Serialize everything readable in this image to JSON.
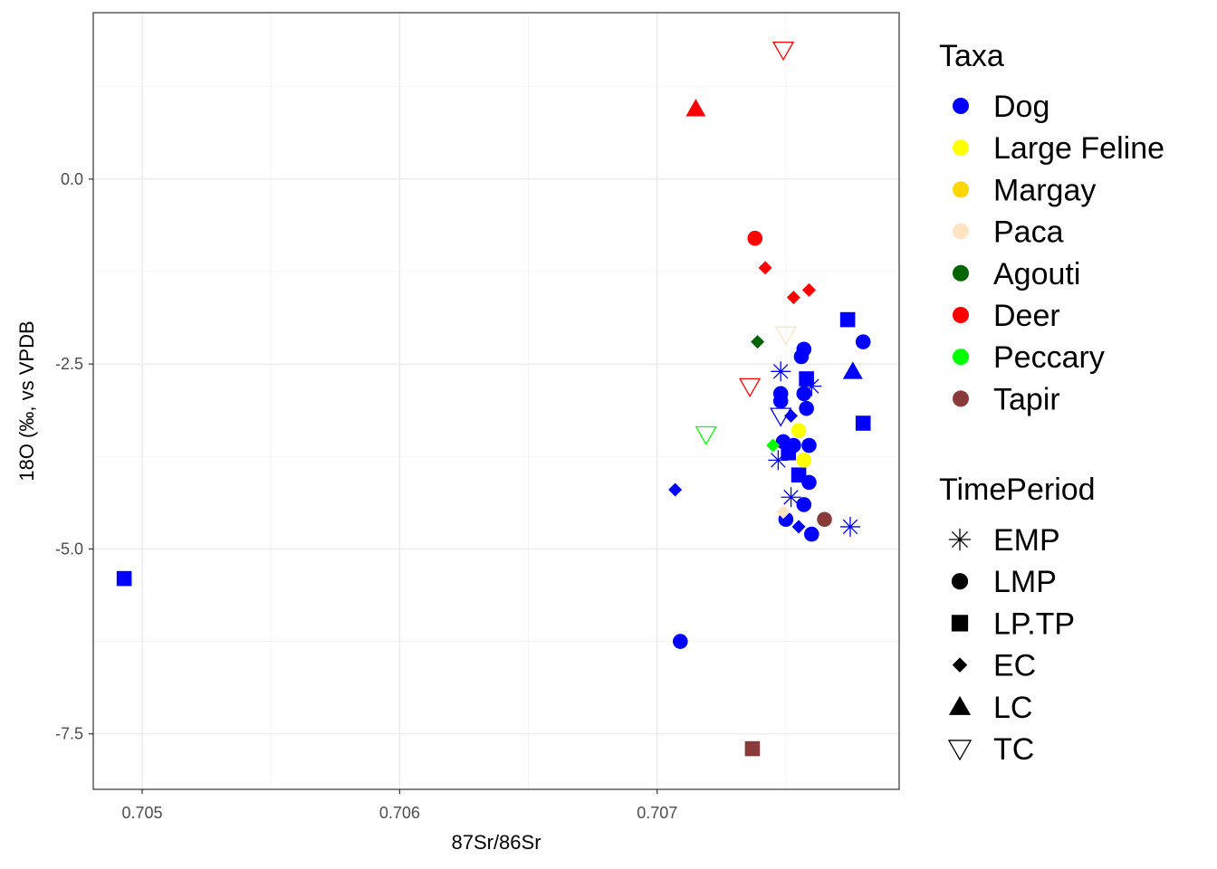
{
  "chart_data": {
    "type": "scatter",
    "xlabel": "87Sr/86Sr",
    "ylabel": "18O (‰, vs VPDB",
    "xlim": [
      0.70481,
      0.70794
    ],
    "ylim": [
      -8.25,
      2.25
    ],
    "x_ticks": [
      {
        "value": 0.705,
        "label": "0.705"
      },
      {
        "value": 0.706,
        "label": "0.706"
      },
      {
        "value": 0.707,
        "label": "0.707"
      }
    ],
    "y_ticks": [
      {
        "value": 0.0,
        "label": "0.0"
      },
      {
        "value": -2.5,
        "label": "-2.5"
      },
      {
        "value": -5.0,
        "label": "-5.0"
      },
      {
        "value": -7.5,
        "label": "-7.5"
      }
    ],
    "grid": true,
    "legend_position": "right",
    "colors": {
      "Dog": "#0000ff",
      "Large Feline": "#ffff00",
      "Margay": "#ffd700",
      "Paca": "#ffe4c4",
      "Agouti": "#006400",
      "Deer": "#ff0000",
      "Peccary": "#00ff00",
      "Tapir": "#8b3a3a"
    },
    "shapes": {
      "EMP": "asterisk",
      "LMP": "circle",
      "LP.TP": "square",
      "EC": "diamond",
      "LC": "triangle",
      "TC": "triangle-down-open"
    },
    "legends": [
      {
        "title": "Taxa",
        "entries": [
          "Dog",
          "Large Feline",
          "Margay",
          "Paca",
          "Agouti",
          "Deer",
          "Peccary",
          "Tapir"
        ]
      },
      {
        "title": "TimePeriod",
        "entries": [
          "EMP",
          "LMP",
          "LP.TP",
          "EC",
          "LC",
          "TC"
        ]
      }
    ],
    "points": [
      {
        "x": 0.70493,
        "y": -5.4,
        "taxa": "Dog",
        "period": "LP.TP"
      },
      {
        "x": 0.70709,
        "y": -6.25,
        "taxa": "Dog",
        "period": "LMP"
      },
      {
        "x": 0.70707,
        "y": -4.2,
        "taxa": "Dog",
        "period": "EC"
      },
      {
        "x": 0.7075,
        "y": -4.6,
        "taxa": "Dog",
        "period": "LMP"
      },
      {
        "x": 0.70755,
        "y": -4.7,
        "taxa": "Dog",
        "period": "EC"
      },
      {
        "x": 0.7076,
        "y": -4.8,
        "taxa": "Dog",
        "period": "LMP"
      },
      {
        "x": 0.70752,
        "y": -4.3,
        "taxa": "Dog",
        "period": "EMP"
      },
      {
        "x": 0.70757,
        "y": -4.4,
        "taxa": "Dog",
        "period": "LMP"
      },
      {
        "x": 0.70759,
        "y": -4.1,
        "taxa": "Dog",
        "period": "LMP"
      },
      {
        "x": 0.70755,
        "y": -4.0,
        "taxa": "Dog",
        "period": "LP.TP"
      },
      {
        "x": 0.70747,
        "y": -3.8,
        "taxa": "Dog",
        "period": "EMP"
      },
      {
        "x": 0.70749,
        "y": -3.55,
        "taxa": "Dog",
        "period": "LMP"
      },
      {
        "x": 0.70753,
        "y": -3.6,
        "taxa": "Dog",
        "period": "LMP"
      },
      {
        "x": 0.70759,
        "y": -3.6,
        "taxa": "Dog",
        "period": "LMP"
      },
      {
        "x": 0.70751,
        "y": -3.7,
        "taxa": "Dog",
        "period": "LP.TP"
      },
      {
        "x": 0.70752,
        "y": -3.2,
        "taxa": "Dog",
        "period": "EC"
      },
      {
        "x": 0.70748,
        "y": -3.0,
        "taxa": "Dog",
        "period": "LMP"
      },
      {
        "x": 0.70748,
        "y": -2.9,
        "taxa": "Dog",
        "period": "LMP"
      },
      {
        "x": 0.70758,
        "y": -3.1,
        "taxa": "Dog",
        "period": "LMP"
      },
      {
        "x": 0.70757,
        "y": -2.9,
        "taxa": "Dog",
        "period": "LMP"
      },
      {
        "x": 0.70758,
        "y": -2.7,
        "taxa": "Dog",
        "period": "LP.TP"
      },
      {
        "x": 0.7076,
        "y": -2.8,
        "taxa": "Dog",
        "period": "EMP"
      },
      {
        "x": 0.70756,
        "y": -2.4,
        "taxa": "Dog",
        "period": "LMP"
      },
      {
        "x": 0.70757,
        "y": -2.3,
        "taxa": "Dog",
        "period": "LMP"
      },
      {
        "x": 0.70748,
        "y": -2.6,
        "taxa": "Dog",
        "period": "EMP"
      },
      {
        "x": 0.70774,
        "y": -1.9,
        "taxa": "Dog",
        "period": "LP.TP"
      },
      {
        "x": 0.7078,
        "y": -2.2,
        "taxa": "Dog",
        "period": "LMP"
      },
      {
        "x": 0.70776,
        "y": -2.6,
        "taxa": "Dog",
        "period": "LC"
      },
      {
        "x": 0.7078,
        "y": -3.3,
        "taxa": "Dog",
        "period": "LP.TP"
      },
      {
        "x": 0.70775,
        "y": -4.7,
        "taxa": "Dog",
        "period": "EMP"
      },
      {
        "x": 0.70748,
        "y": -3.2,
        "taxa": "Dog",
        "period": "TC"
      },
      {
        "x": 0.70755,
        "y": -3.4,
        "taxa": "Large Feline",
        "period": "LMP"
      },
      {
        "x": 0.70757,
        "y": -3.8,
        "taxa": "Large Feline",
        "period": "LMP"
      },
      {
        "x": 0.70749,
        "y": -4.5,
        "taxa": "Paca",
        "period": "EC"
      },
      {
        "x": 0.70739,
        "y": -2.2,
        "taxa": "Agouti",
        "period": "EC"
      },
      {
        "x": 0.70738,
        "y": -0.8,
        "taxa": "Deer",
        "period": "LMP"
      },
      {
        "x": 0.70742,
        "y": -1.2,
        "taxa": "Deer",
        "period": "EC"
      },
      {
        "x": 0.70753,
        "y": -1.6,
        "taxa": "Deer",
        "period": "EC"
      },
      {
        "x": 0.70759,
        "y": -1.5,
        "taxa": "Deer",
        "period": "EC"
      },
      {
        "x": 0.70715,
        "y": 0.95,
        "taxa": "Deer",
        "period": "LC"
      },
      {
        "x": 0.70749,
        "y": 1.75,
        "taxa": "Deer",
        "period": "TC"
      },
      {
        "x": 0.70736,
        "y": -2.8,
        "taxa": "Deer",
        "period": "TC"
      },
      {
        "x": 0.70745,
        "y": -3.6,
        "taxa": "Peccary",
        "period": "EC"
      },
      {
        "x": 0.70719,
        "y": -3.45,
        "taxa": "Peccary",
        "period": "TC"
      },
      {
        "x": 0.7075,
        "y": -2.1,
        "taxa": "Paca",
        "period": "TC"
      },
      {
        "x": 0.70765,
        "y": -4.6,
        "taxa": "Tapir",
        "period": "LMP"
      },
      {
        "x": 0.70737,
        "y": -7.7,
        "taxa": "Tapir",
        "period": "LP.TP"
      }
    ]
  }
}
